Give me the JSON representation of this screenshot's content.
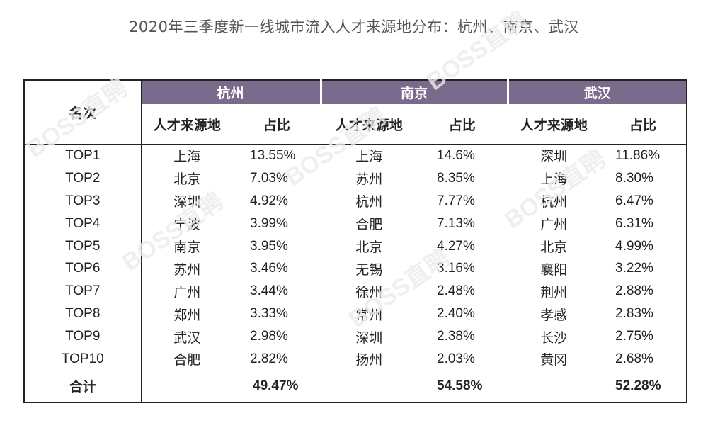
{
  "title": "2020年三季度新一线城市流入人才来源地分布：杭州、南京、武汉",
  "watermark": "BOSS直聘",
  "header": {
    "rank_label": "名次",
    "source_label": "人才来源地",
    "share_label": "占比",
    "cities": [
      "杭州",
      "南京",
      "武汉"
    ]
  },
  "ranks": [
    "TOP1",
    "TOP2",
    "TOP3",
    "TOP4",
    "TOP5",
    "TOP6",
    "TOP7",
    "TOP8",
    "TOP9",
    "TOP10"
  ],
  "cities": [
    {
      "name": "杭州",
      "rows": [
        {
          "source": "上海",
          "share": "13.55%"
        },
        {
          "source": "北京",
          "share": "7.03%"
        },
        {
          "source": "深圳",
          "share": "4.92%"
        },
        {
          "source": "宁波",
          "share": "3.99%"
        },
        {
          "source": "南京",
          "share": "3.95%"
        },
        {
          "source": "苏州",
          "share": "3.46%"
        },
        {
          "source": "广州",
          "share": "3.44%"
        },
        {
          "source": "郑州",
          "share": "3.33%"
        },
        {
          "source": "武汉",
          "share": "2.98%"
        },
        {
          "source": "合肥",
          "share": "2.82%"
        }
      ],
      "total": "49.47%"
    },
    {
      "name": "南京",
      "rows": [
        {
          "source": "上海",
          "share": "14.6%"
        },
        {
          "source": "苏州",
          "share": "8.35%"
        },
        {
          "source": "杭州",
          "share": "7.77%"
        },
        {
          "source": "合肥",
          "share": "7.13%"
        },
        {
          "source": "北京",
          "share": "4.27%"
        },
        {
          "source": "无锡",
          "share": "3.16%"
        },
        {
          "source": "徐州",
          "share": "2.48%"
        },
        {
          "source": "常州",
          "share": "2.40%"
        },
        {
          "source": "深圳",
          "share": "2.38%"
        },
        {
          "source": "扬州",
          "share": "2.03%"
        }
      ],
      "total": "54.58%"
    },
    {
      "name": "武汉",
      "rows": [
        {
          "source": "深圳",
          "share": "11.86%"
        },
        {
          "source": "上海",
          "share": "8.30%"
        },
        {
          "source": "杭州",
          "share": "6.47%"
        },
        {
          "source": "广州",
          "share": "6.31%"
        },
        {
          "source": "北京",
          "share": "4.99%"
        },
        {
          "source": "襄阳",
          "share": "3.22%"
        },
        {
          "source": "荆州",
          "share": "2.88%"
        },
        {
          "source": "孝感",
          "share": "2.83%"
        },
        {
          "source": "长沙",
          "share": "2.75%"
        },
        {
          "source": "黄冈",
          "share": "2.68%"
        }
      ],
      "total": "52.28%"
    }
  ],
  "total_label": "合计",
  "colors": {
    "header_bg": "#7a6a8c",
    "header_text": "#ffffff",
    "border": "#222222"
  }
}
